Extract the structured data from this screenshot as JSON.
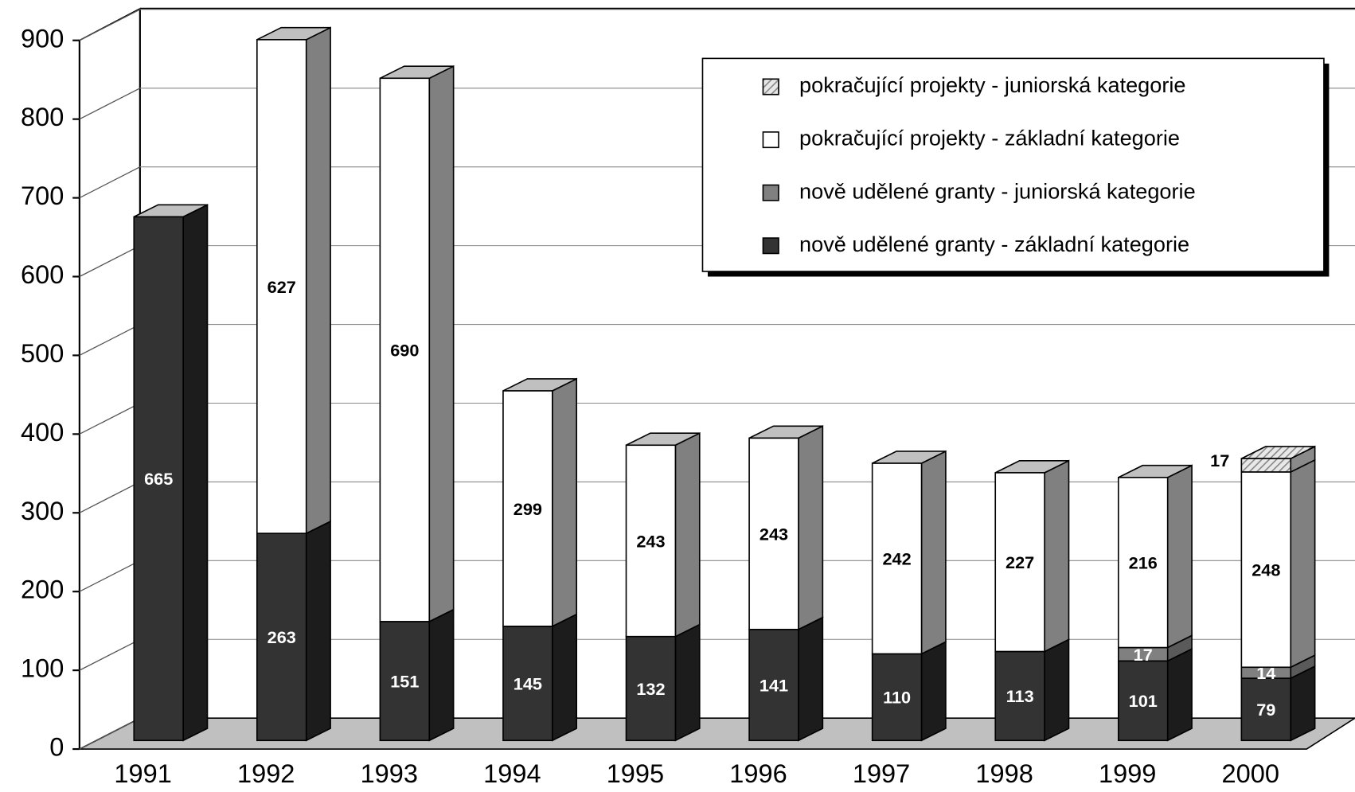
{
  "chart_data": {
    "type": "bar3d_stacked",
    "categories": [
      "1991",
      "1992",
      "1993",
      "1994",
      "1995",
      "1996",
      "1997",
      "1998",
      "1999",
      "2000"
    ],
    "series": [
      {
        "name": "nově udělené granty - základní kategorie",
        "color": "#333333",
        "side": "#1c1c1c",
        "label_color": "#ffffff",
        "values": [
          665,
          263,
          151,
          145,
          132,
          141,
          110,
          113,
          101,
          79
        ]
      },
      {
        "name": "nově udělené granty - juniorská kategorie",
        "color": "#808080",
        "side": "#5a5a5a",
        "label_color": "#ffffff",
        "values": [
          null,
          null,
          null,
          null,
          null,
          null,
          null,
          null,
          17,
          14
        ]
      },
      {
        "name": "pokračující projekty - základní kategorie",
        "color": "#ffffff",
        "side": "#808080",
        "label_color": "#000000",
        "values": [
          null,
          627,
          690,
          299,
          243,
          243,
          242,
          227,
          216,
          248
        ]
      },
      {
        "name": "pokračující projekty - juniorská kategorie",
        "color": "#c8c8c8",
        "side": "#8a8a8a",
        "label_color": "#000000",
        "hatch": true,
        "values": [
          null,
          null,
          null,
          null,
          null,
          null,
          null,
          null,
          null,
          17
        ]
      }
    ],
    "ylim": [
      0,
      900
    ],
    "yticks": [
      0,
      100,
      200,
      300,
      400,
      500,
      600,
      700,
      800,
      900
    ],
    "grid": true,
    "legend": "upper right"
  }
}
